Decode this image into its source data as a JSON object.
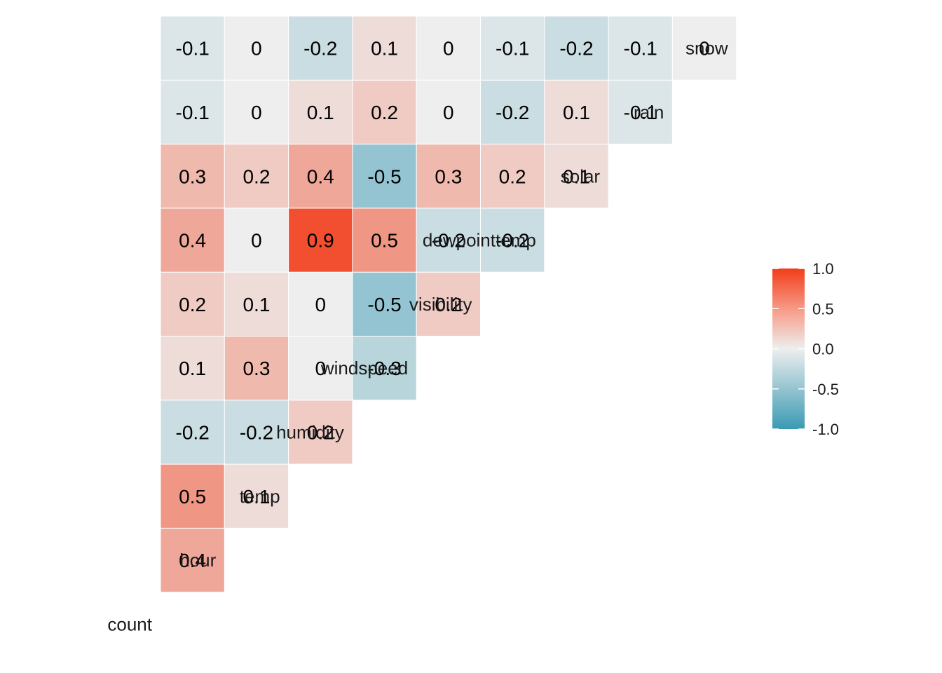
{
  "chart_data": {
    "type": "heatmap",
    "variables": [
      "count",
      "hour",
      "temp",
      "humidity",
      "windspeed",
      "visibility",
      "dewpointtemp",
      "solar",
      "rain",
      "snow"
    ],
    "lower_triangle_rows": [
      {
        "row": "count",
        "values": []
      },
      {
        "row": "hour",
        "values": [
          0.4
        ]
      },
      {
        "row": "temp",
        "values": [
          0.5,
          0.1
        ]
      },
      {
        "row": "humidity",
        "values": [
          -0.2,
          -0.2,
          0.2
        ]
      },
      {
        "row": "windspeed",
        "values": [
          0.1,
          0.3,
          0,
          -0.3
        ]
      },
      {
        "row": "visibility",
        "values": [
          0.2,
          0.1,
          0,
          -0.5,
          0.2
        ]
      },
      {
        "row": "dewpointtemp",
        "values": [
          0.4,
          0,
          0.9,
          0.5,
          -0.2,
          -0.2
        ]
      },
      {
        "row": "solar",
        "values": [
          0.3,
          0.2,
          0.4,
          -0.5,
          0.3,
          0.2,
          0.1
        ]
      },
      {
        "row": "rain",
        "values": [
          -0.1,
          0,
          0.1,
          0.2,
          0,
          -0.2,
          0.1,
          -0.1
        ]
      },
      {
        "row": "snow",
        "values": [
          -0.1,
          0,
          -0.2,
          0.1,
          0,
          -0.1,
          -0.2,
          -0.1,
          0
        ]
      }
    ],
    "color_scale": {
      "low": "#3a9ab3",
      "mid": "#eeeeee",
      "high": "#f13d1a",
      "limits": [
        -1.0,
        1.0
      ]
    },
    "legend": {
      "position": "right",
      "ticks": [
        "1.0",
        "0.5",
        "0.0",
        "-0.5",
        "-1.0"
      ]
    },
    "title": "",
    "xlabel": "",
    "ylabel": ""
  }
}
